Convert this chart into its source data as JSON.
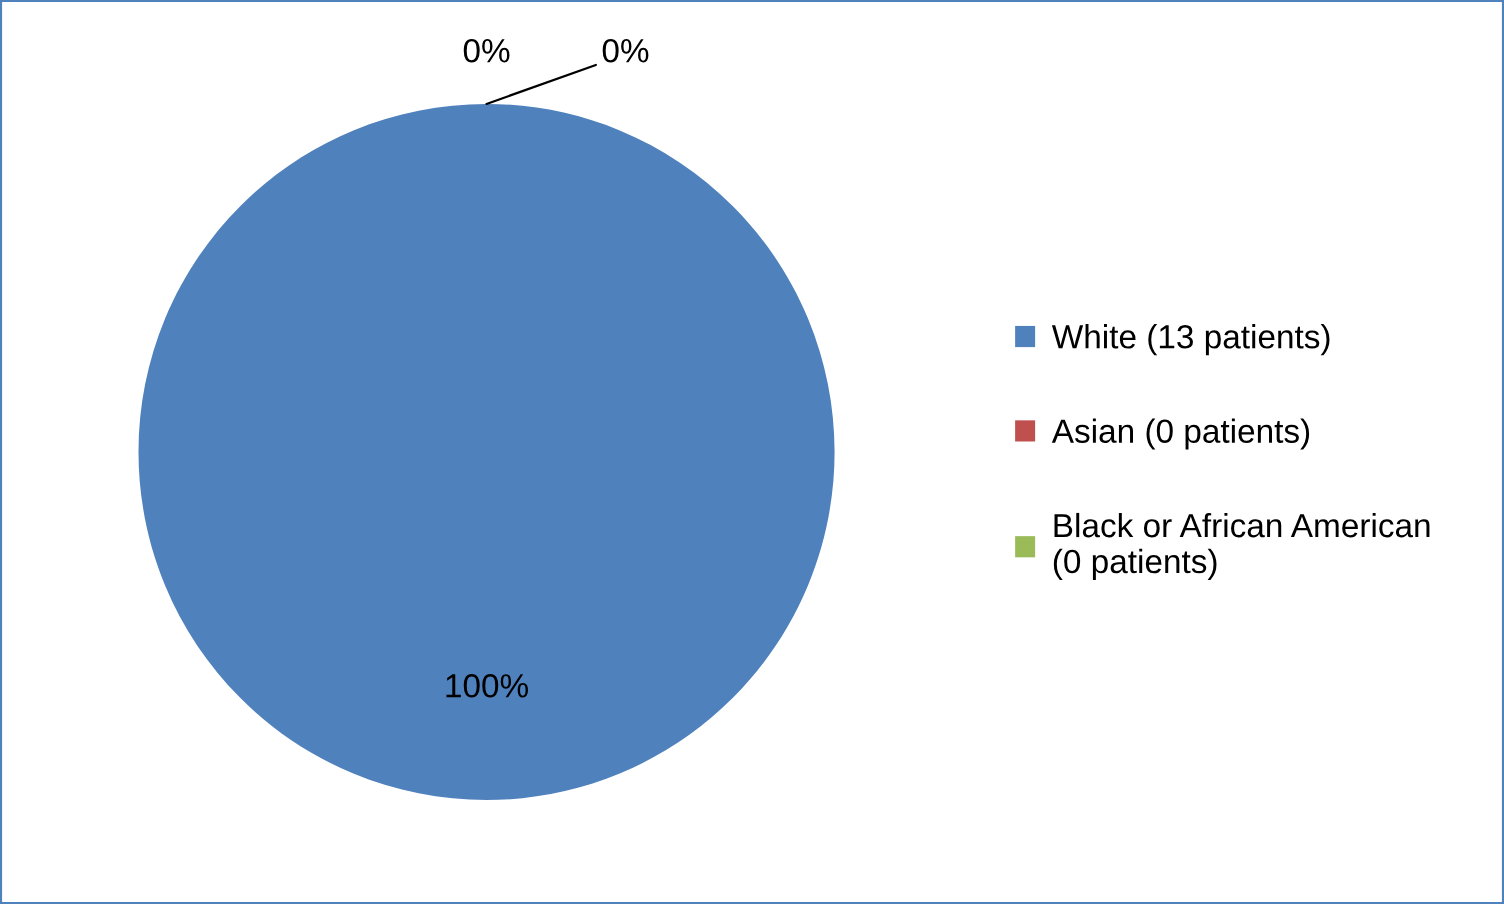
{
  "chart_data": {
    "type": "pie",
    "categories": [
      "White (13 patients)",
      "Asian (0 patients)",
      "Black or African American\n(0 patients)"
    ],
    "values": [
      100,
      0,
      0
    ],
    "colors": [
      "#4f81bd",
      "#c0504d",
      "#9bbb59"
    ],
    "value_labels": [
      "100%",
      "0%",
      "0%"
    ],
    "legend": "right"
  }
}
